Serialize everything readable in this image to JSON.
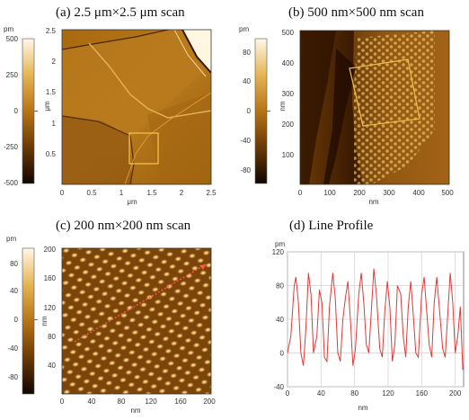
{
  "panels": {
    "a": {
      "title": "(a) 2.5 μm×2.5 μm scan",
      "colorbar": {
        "unit": "pm",
        "ticks": [
          "500",
          "250",
          "0",
          "-250",
          "-500"
        ]
      },
      "axis_unit": "μm",
      "x_ticks": [
        "0",
        "0.5",
        "1",
        "1.5",
        "2",
        "2.5"
      ],
      "y_ticks": [
        "2.5",
        "2",
        "1.5",
        "1",
        "0.5"
      ]
    },
    "b": {
      "title": "(b) 500 nm×500 nm scan",
      "colorbar": {
        "unit": "pm",
        "ticks": [
          "80",
          "40",
          "0",
          "-40",
          "-80"
        ]
      },
      "axis_unit": "nm",
      "x_ticks": [
        "0",
        "100",
        "200",
        "300",
        "400",
        "500"
      ],
      "y_ticks": [
        "500",
        "400",
        "300",
        "200",
        "100"
      ]
    },
    "c": {
      "title": "(c) 200 nm×200 nm scan",
      "colorbar": {
        "unit": "pm",
        "ticks": [
          "80",
          "40",
          "0",
          "-40",
          "-80"
        ]
      },
      "axis_unit": "nm",
      "x_ticks": [
        "0",
        "40",
        "80",
        "120",
        "160",
        "200"
      ],
      "y_ticks": [
        "200",
        "160",
        "120",
        "80",
        "40"
      ]
    },
    "d": {
      "title": "(d) Line Profile"
    }
  },
  "chart_data": {
    "type": "line",
    "title": "(d) Line Profile",
    "xlabel": "nm",
    "ylabel": "pm",
    "xlim": [
      0,
      210
    ],
    "ylim": [
      -40,
      120
    ],
    "x_ticks": [
      "0",
      "40",
      "80",
      "120",
      "160",
      "200"
    ],
    "y_ticks": [
      "120",
      "80",
      "40",
      "0",
      "-40"
    ],
    "grid": true,
    "color": "#e03a3a",
    "x": [
      0,
      4,
      8,
      10,
      13,
      16,
      19,
      22,
      25,
      28,
      31,
      35,
      38,
      41,
      44,
      47,
      50,
      54,
      57,
      60,
      63,
      66,
      69,
      72,
      75,
      78,
      81,
      85,
      88,
      91,
      94,
      97,
      100,
      103,
      106,
      110,
      113,
      116,
      119,
      122,
      125,
      128,
      131,
      135,
      138,
      141,
      144,
      147,
      150,
      153,
      156,
      160,
      163,
      166,
      169,
      172,
      175,
      178,
      181,
      185,
      188,
      191,
      194,
      197,
      200,
      203,
      206,
      209
    ],
    "y": [
      0,
      20,
      80,
      90,
      60,
      0,
      -15,
      30,
      95,
      70,
      0,
      20,
      75,
      60,
      -5,
      -10,
      55,
      95,
      65,
      0,
      -10,
      40,
      65,
      85,
      40,
      -15,
      5,
      70,
      95,
      60,
      10,
      0,
      50,
      100,
      70,
      5,
      -5,
      50,
      85,
      55,
      -10,
      10,
      80,
      70,
      20,
      -5,
      55,
      85,
      45,
      0,
      -5,
      70,
      90,
      50,
      10,
      -5,
      60,
      90,
      55,
      5,
      -5,
      45,
      95,
      60,
      0,
      20,
      55,
      -20
    ]
  }
}
